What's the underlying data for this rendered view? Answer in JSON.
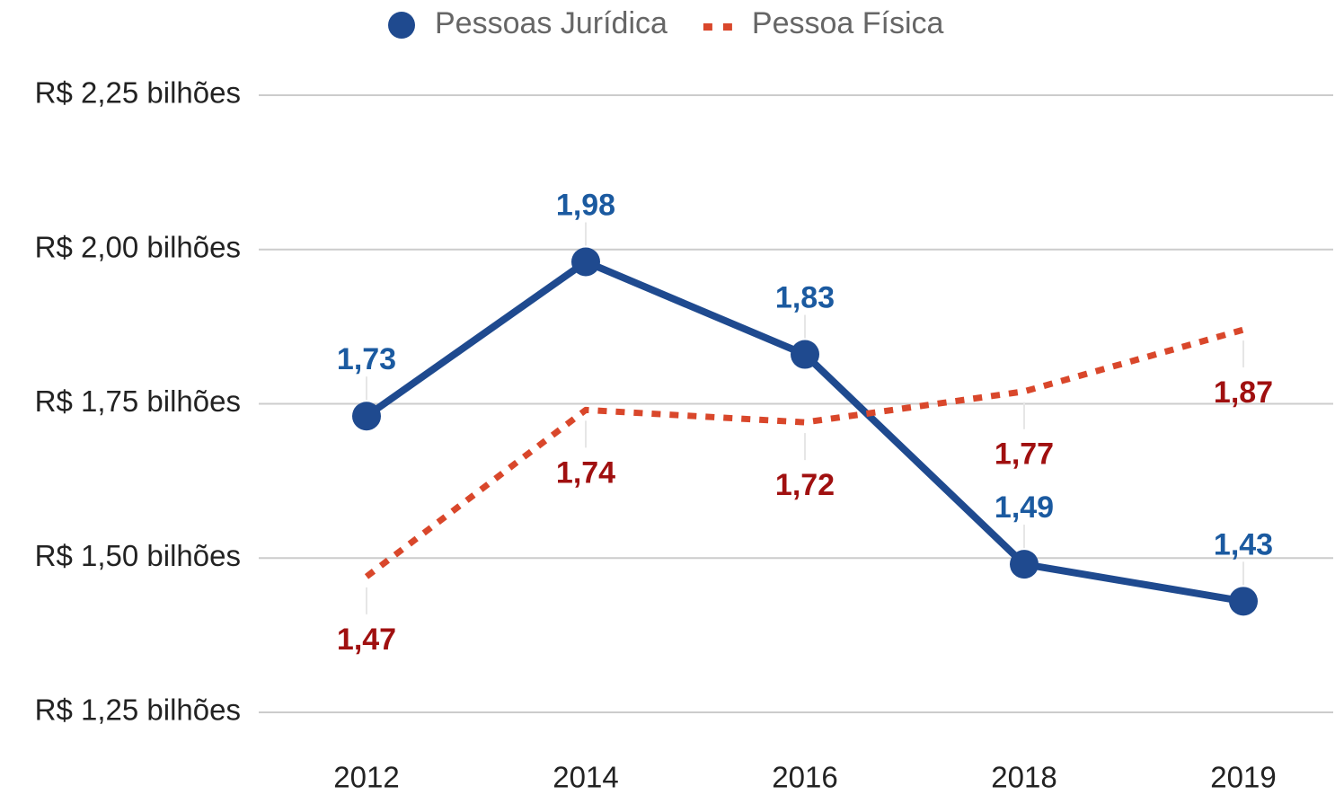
{
  "chart_data": {
    "type": "line",
    "categories": [
      "2012",
      "2014",
      "2016",
      "2018",
      "2019"
    ],
    "series": [
      {
        "name": "Pessoas Jurídica",
        "color": "#1f4a8f",
        "label_color": "#1b5aa0",
        "line_style": "solid",
        "marker": true,
        "values": [
          1.73,
          1.98,
          1.83,
          1.49,
          1.43
        ],
        "value_labels": [
          "1,73",
          "1,98",
          "1,83",
          "1,49",
          "1,43"
        ],
        "label_position": "above"
      },
      {
        "name": "Pessoa Física",
        "color": "#d9472b",
        "label_color": "#a01010",
        "line_style": "dotted",
        "marker": false,
        "values": [
          1.47,
          1.74,
          1.72,
          1.77,
          1.87
        ],
        "value_labels": [
          "1,47",
          "1,74",
          "1,72",
          "1,77",
          "1,87"
        ],
        "label_position": "below"
      }
    ],
    "ylim": [
      1.25,
      2.25
    ],
    "yticks": [
      {
        "value": 1.25,
        "label": "R$ 1,25 bilhões"
      },
      {
        "value": 1.5,
        "label": "R$ 1,50 bilhões"
      },
      {
        "value": 1.75,
        "label": "R$ 1,75 bilhões"
      },
      {
        "value": 2.0,
        "label": "R$ 2,00 bilhões"
      },
      {
        "value": 2.25,
        "label": "R$ 2,25 bilhões"
      }
    ],
    "grid": true,
    "legend": "top"
  }
}
